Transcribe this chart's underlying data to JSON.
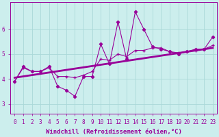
{
  "xlabel": "Windchill (Refroidissement éolien,°C)",
  "bg_color": "#cceeed",
  "line_color": "#990099",
  "grid_color": "#aad8d8",
  "x_ticks": [
    0,
    1,
    2,
    3,
    4,
    5,
    6,
    7,
    8,
    9,
    10,
    11,
    12,
    13,
    14,
    15,
    16,
    17,
    18,
    19,
    20,
    21,
    22,
    23
  ],
  "y_ticks": [
    3,
    4,
    5,
    6
  ],
  "ylim": [
    2.6,
    7.1
  ],
  "xlim": [
    -0.5,
    23.5
  ],
  "series_jagged": [
    3.9,
    4.5,
    4.3,
    4.3,
    4.5,
    3.7,
    3.55,
    3.3,
    4.1,
    4.1,
    5.4,
    4.6,
    6.3,
    4.8,
    6.7,
    6.0,
    5.3,
    5.2,
    5.1,
    5.0,
    5.1,
    5.2,
    5.2,
    5.7
  ],
  "series_smooth": [
    3.9,
    4.45,
    4.3,
    4.3,
    4.45,
    4.1,
    4.1,
    4.05,
    4.15,
    4.3,
    4.8,
    4.75,
    5.0,
    4.9,
    5.15,
    5.15,
    5.25,
    5.25,
    5.1,
    5.05,
    5.1,
    5.15,
    5.2,
    5.35
  ],
  "trend_y_start": 4.05,
  "trend_y_end": 5.25,
  "tick_fontsize": 5.5,
  "label_fontsize": 6.5,
  "marker_size": 2.2
}
